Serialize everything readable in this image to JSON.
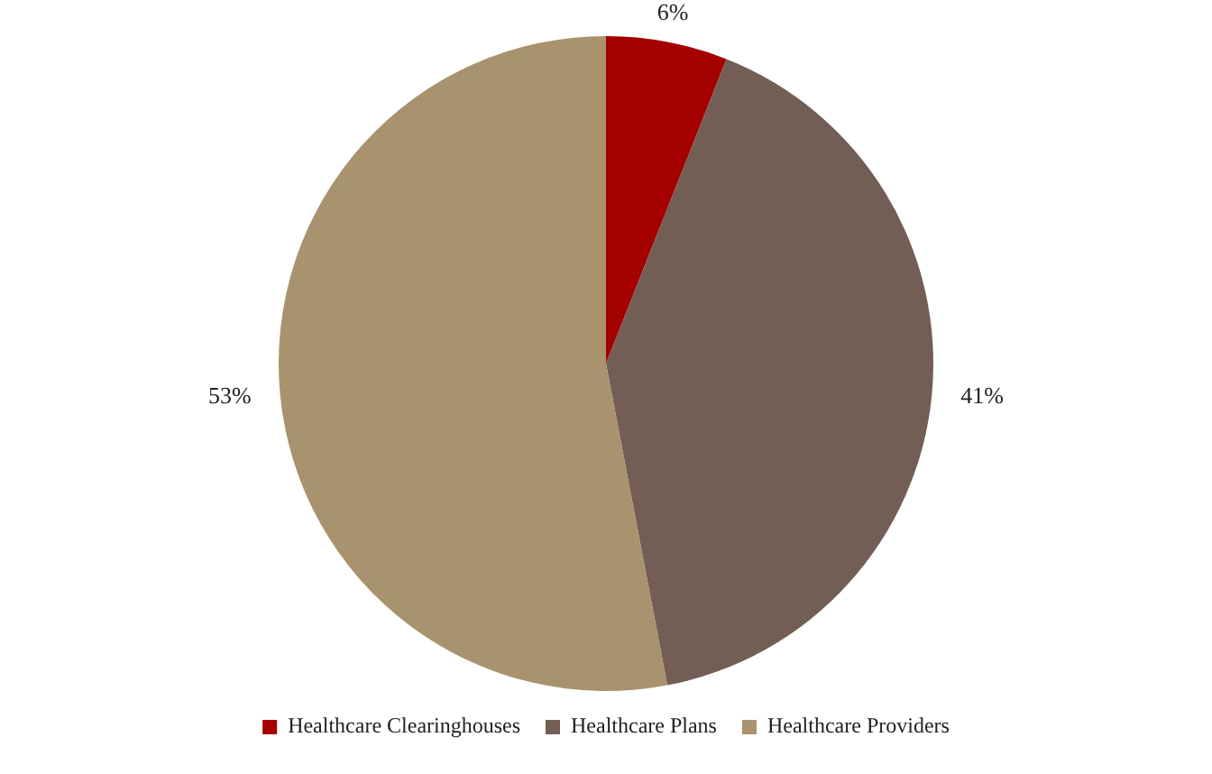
{
  "chart_data": {
    "type": "pie",
    "categories": [
      "Healthcare Clearinghouses",
      "Healthcare Plans",
      "Healthcare Providers"
    ],
    "values": [
      6,
      41,
      53
    ],
    "colors": [
      "#a50000",
      "#725e54",
      "#a8936e"
    ],
    "value_labels": [
      "6%",
      "41%",
      "53%"
    ],
    "legend": "bottom"
  }
}
